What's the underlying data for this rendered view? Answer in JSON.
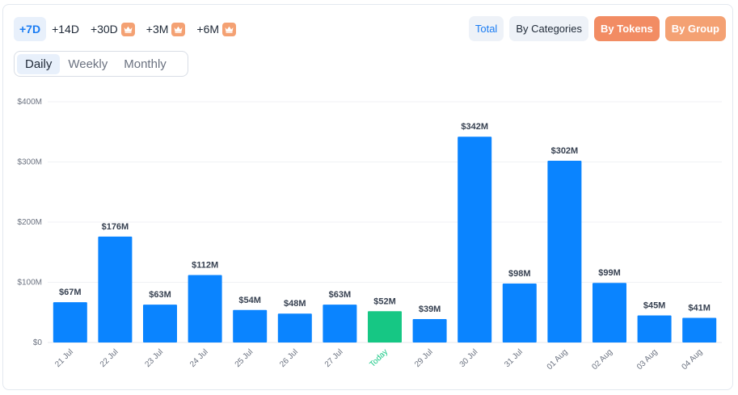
{
  "range": {
    "items": [
      {
        "label": "+7D",
        "premium": false,
        "active": true
      },
      {
        "label": "+14D",
        "premium": false,
        "active": false
      },
      {
        "label": "+30D",
        "premium": true,
        "active": false
      },
      {
        "label": "+3M",
        "premium": true,
        "active": false
      },
      {
        "label": "+6M",
        "premium": true,
        "active": false
      }
    ],
    "premium_icon": "crown-icon"
  },
  "view": {
    "items": [
      {
        "label": "Total",
        "style": "light",
        "active": true
      },
      {
        "label": "By Categories",
        "style": "light",
        "active": false
      },
      {
        "label": "By Tokens",
        "style": "orange",
        "active": false
      },
      {
        "label": "By Group",
        "style": "orange",
        "active": false
      }
    ]
  },
  "period": {
    "items": [
      {
        "label": "Daily",
        "active": true
      },
      {
        "label": "Weekly",
        "active": false
      },
      {
        "label": "Monthly",
        "active": false
      }
    ]
  },
  "colors": {
    "bar": "#0a84ff",
    "today_bar": "#16c784",
    "today_label": "#16c784",
    "accent_orange": "#f4a173",
    "active_blue": "#1a7cf3"
  },
  "chart_data": {
    "type": "bar",
    "categories": [
      "21 Jul",
      "22 Jul",
      "23 Jul",
      "24 Jul",
      "25 Jul",
      "26 Jul",
      "27 Jul",
      "Today",
      "29 Jul",
      "30 Jul",
      "31 Jul",
      "01 Aug",
      "02 Aug",
      "03 Aug",
      "04 Aug"
    ],
    "values": [
      67,
      176,
      63,
      112,
      54,
      48,
      63,
      52,
      39,
      342,
      98,
      302,
      99,
      45,
      41
    ],
    "value_labels": [
      "$67M",
      "$176M",
      "$63M",
      "$112M",
      "$54M",
      "$48M",
      "$63M",
      "$52M",
      "$39M",
      "$342M",
      "$98M",
      "$302M",
      "$99M",
      "$45M",
      "$41M"
    ],
    "highlight_index": 7,
    "yticks": [
      0,
      100,
      200,
      300,
      400
    ],
    "ytick_labels": [
      "$0",
      "$100M",
      "$200M",
      "$300M",
      "$400M"
    ],
    "ylim": [
      0,
      400
    ],
    "grid": true,
    "title": "",
    "xlabel": "",
    "ylabel": ""
  }
}
